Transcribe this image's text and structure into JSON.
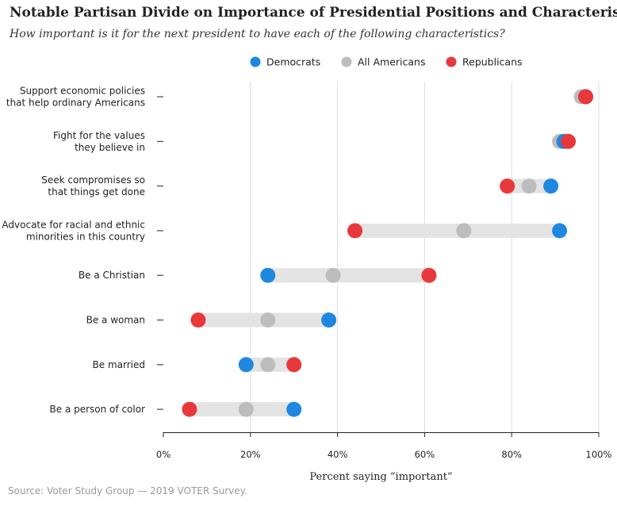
{
  "title": "Notable Partisan Divide on Importance of Presidential Positions and Characteristics",
  "subtitle": "How important is it for the next president to have each of the following characteristics?",
  "source": "Source: Voter Study Group — 2019 VOTER Survey.",
  "colors": {
    "democrats": "#1f87e0",
    "all_americans": "#bdbdbd",
    "republicans": "#e8383b",
    "range_bar": "#e3e3e3",
    "gridline": "#dddddd"
  },
  "chart_data": {
    "type": "scatter",
    "subtype": "dumbbell",
    "xlabel": "Percent saying “important”",
    "xlim": [
      0,
      100
    ],
    "x_ticks": [
      0,
      20,
      40,
      60,
      80,
      100
    ],
    "x_tick_labels": [
      "0%",
      "20%",
      "40%",
      "60%",
      "80%",
      "100%"
    ],
    "grid": "vertical",
    "legend_position": "top",
    "legend": [
      {
        "key": "democrats",
        "label": "Democrats"
      },
      {
        "key": "all_americans",
        "label": "All Americans"
      },
      {
        "key": "republicans",
        "label": "Republicans"
      }
    ],
    "categories": [
      [
        "Support economic policies",
        "that help ordinary Americans"
      ],
      [
        "Fight for the values",
        "they believe in"
      ],
      [
        "Seek compromises so",
        "that things get done"
      ],
      [
        "Advocate for racial and ethnic",
        "minorities in this country"
      ],
      [
        "Be a Christian"
      ],
      [
        "Be a woman"
      ],
      [
        "Be married"
      ],
      [
        "Be a person of color"
      ]
    ],
    "series": [
      {
        "key": "all_americans",
        "name": "All Americans",
        "values": [
          96,
          91,
          84,
          69,
          39,
          24,
          24,
          19
        ]
      },
      {
        "key": "democrats",
        "name": "Democrats",
        "values": [
          97,
          92,
          89,
          91,
          24,
          38,
          19,
          30
        ]
      },
      {
        "key": "republicans",
        "name": "Republicans",
        "values": [
          97,
          93,
          79,
          44,
          61,
          8,
          30,
          6
        ]
      }
    ]
  }
}
